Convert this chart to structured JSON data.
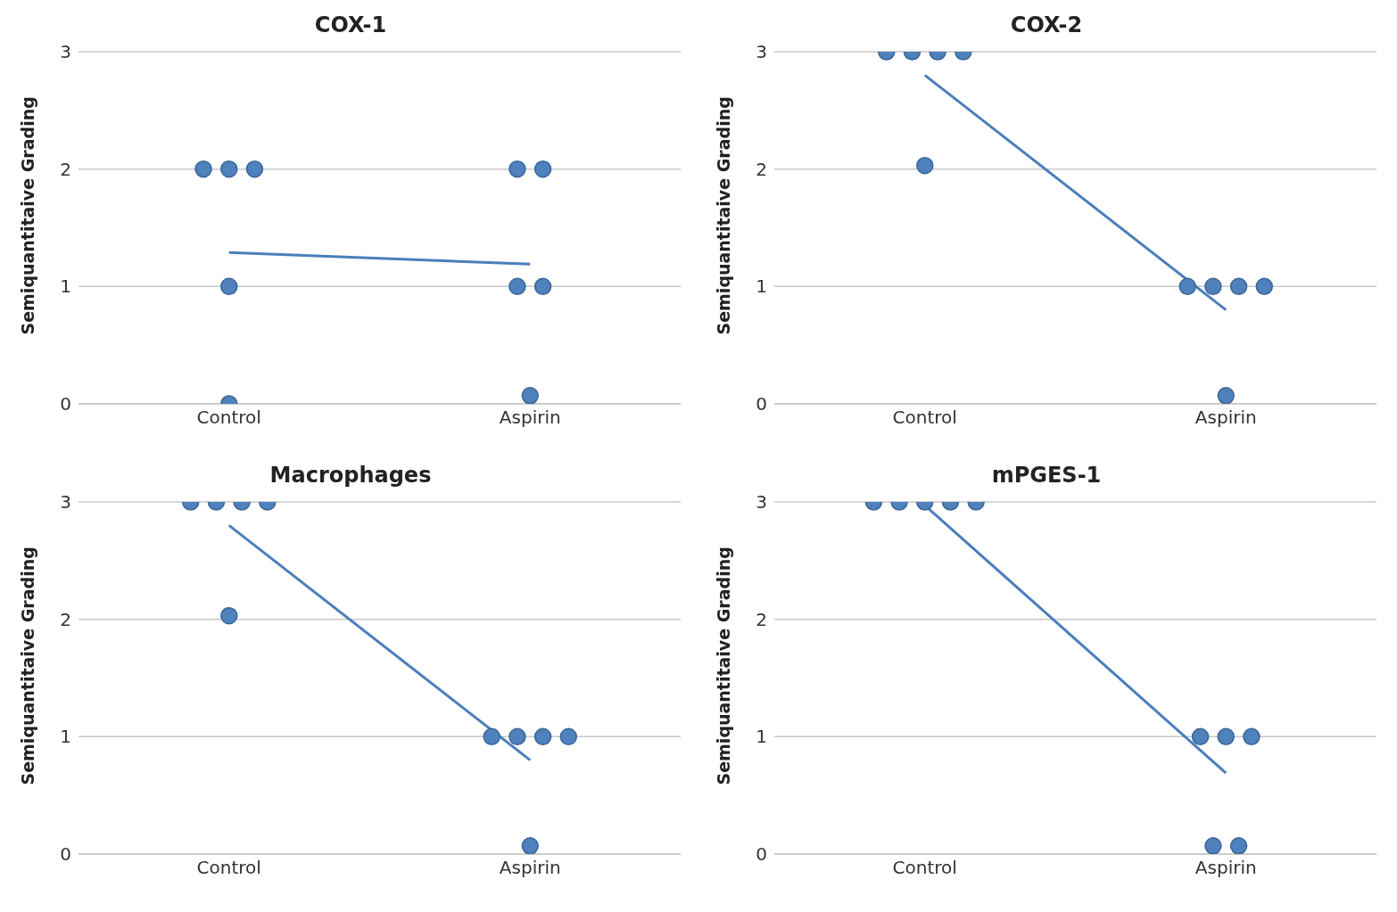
{
  "chart_data": [
    {
      "type": "scatter",
      "title": "COX-1",
      "ylabel": "Semiquantitaive Grading",
      "categories": [
        "Control",
        "Aspirin"
      ],
      "ylim": [
        0,
        3
      ],
      "yticks": [
        0,
        1,
        2,
        3
      ],
      "grid": "y",
      "legend": false,
      "marker": "circle",
      "series": [
        {
          "color": "#4f81bd",
          "x": [
            "Control",
            "Control",
            "Control",
            "Control",
            "Control",
            "Aspirin",
            "Aspirin",
            "Aspirin",
            "Aspirin",
            "Aspirin"
          ],
          "values": [
            2,
            2,
            2,
            1,
            0,
            2,
            2,
            1,
            1,
            0.07
          ]
        },
        {
          "type": "line",
          "color": "#4a7ebb",
          "marker": "none",
          "x": [
            "Control",
            "Aspirin"
          ],
          "values": [
            1.29,
            1.19
          ]
        }
      ]
    },
    {
      "type": "scatter",
      "title": "COX-2",
      "ylabel": "Semiquantitaive Grading",
      "categories": [
        "Control",
        "Aspirin"
      ],
      "ylim": [
        0,
        3
      ],
      "yticks": [
        0,
        1,
        2,
        3
      ],
      "grid": "y",
      "legend": false,
      "marker": "circle",
      "series": [
        {
          "color": "#4f81bd",
          "x": [
            "Control",
            "Control",
            "Control",
            "Control",
            "Control",
            "Aspirin",
            "Aspirin",
            "Aspirin",
            "Aspirin",
            "Aspirin"
          ],
          "values": [
            3,
            3,
            3,
            3,
            2.03,
            1,
            1,
            1,
            1,
            0.07
          ]
        },
        {
          "type": "line",
          "color": "#4a7ebb",
          "marker": "none",
          "x": [
            "Control",
            "Aspirin"
          ],
          "values": [
            2.8,
            0.8
          ]
        }
      ]
    },
    {
      "type": "scatter",
      "title": "Macrophages",
      "ylabel": "Semiquantitaive Grading",
      "categories": [
        "Control",
        "Aspirin"
      ],
      "ylim": [
        0,
        3
      ],
      "yticks": [
        0,
        1,
        2,
        3
      ],
      "grid": "y",
      "legend": false,
      "marker": "circle",
      "series": [
        {
          "color": "#4f81bd",
          "x": [
            "Control",
            "Control",
            "Control",
            "Control",
            "Control",
            "Aspirin",
            "Aspirin",
            "Aspirin",
            "Aspirin",
            "Aspirin"
          ],
          "values": [
            3,
            3,
            3,
            3,
            2.03,
            1,
            1,
            1,
            1,
            0.07
          ]
        },
        {
          "type": "line",
          "color": "#4a7ebb",
          "marker": "none",
          "x": [
            "Control",
            "Aspirin"
          ],
          "values": [
            2.8,
            0.8
          ]
        }
      ]
    },
    {
      "type": "scatter",
      "title": "mPGES-1",
      "ylabel": "Semiquantitaive Grading",
      "categories": [
        "Control",
        "Aspirin"
      ],
      "ylim": [
        0,
        3
      ],
      "yticks": [
        0,
        1,
        2,
        3
      ],
      "grid": "y",
      "legend": false,
      "marker": "circle",
      "series": [
        {
          "color": "#4f81bd",
          "x": [
            "Control",
            "Control",
            "Control",
            "Control",
            "Control",
            "Aspirin",
            "Aspirin",
            "Aspirin",
            "Aspirin",
            "Aspirin"
          ],
          "values": [
            3,
            3,
            3,
            3,
            3,
            1,
            1,
            1,
            0.07,
            0.07
          ]
        },
        {
          "type": "line",
          "color": "#4a7ebb",
          "marker": "none",
          "x": [
            "Control",
            "Aspirin"
          ],
          "values": [
            2.97,
            0.69
          ]
        }
      ]
    }
  ]
}
